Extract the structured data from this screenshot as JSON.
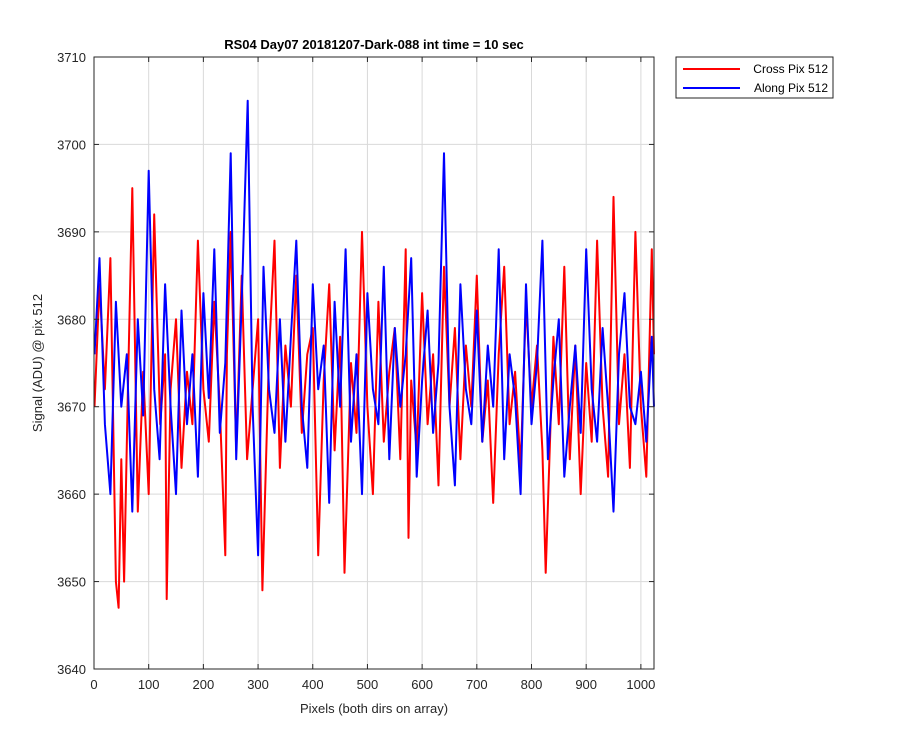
{
  "chart_data": {
    "type": "line",
    "title": "RS04 Day07 20181207-Dark-088 int time = 10 sec",
    "xlabel": "Pixels (both dirs on array)",
    "ylabel": "Signal (ADU) @ pix 512",
    "xlim": [
      0,
      1024
    ],
    "ylim": [
      3640,
      3710
    ],
    "xticks": [
      0,
      100,
      200,
      300,
      400,
      500,
      600,
      700,
      800,
      900,
      1000
    ],
    "yticks": [
      3640,
      3650,
      3660,
      3670,
      3680,
      3690,
      3700,
      3710
    ],
    "grid": true,
    "legend_position": "outside-top-right",
    "series": [
      {
        "name": "Cross Pix 512",
        "color": "#ff0000",
        "x": [
          1,
          10,
          20,
          30,
          40,
          45,
          50,
          55,
          62,
          70,
          80,
          90,
          100,
          110,
          121,
          130,
          133,
          140,
          150,
          160,
          170,
          180,
          190,
          200,
          210,
          220,
          230,
          240,
          243,
          250,
          260,
          270,
          280,
          290,
          300,
          308,
          320,
          330,
          340,
          350,
          360,
          370,
          380,
          390,
          400,
          410,
          420,
          430,
          440,
          450,
          458,
          470,
          480,
          490,
          500,
          510,
          520,
          530,
          540,
          550,
          560,
          570,
          575,
          580,
          590,
          600,
          610,
          620,
          630,
          640,
          650,
          660,
          670,
          680,
          690,
          700,
          710,
          720,
          730,
          740,
          750,
          760,
          770,
          780,
          790,
          800,
          810,
          820,
          826,
          840,
          850,
          860,
          870,
          880,
          890,
          900,
          910,
          920,
          930,
          940,
          950,
          960,
          970,
          980,
          990,
          1000,
          1010,
          1020,
          1024
        ],
        "y": [
          3670,
          3684,
          3672,
          3687,
          3650,
          3647,
          3664,
          3650,
          3672,
          3695,
          3658,
          3674,
          3660,
          3692,
          3668,
          3676,
          3648,
          3672,
          3680,
          3663,
          3674,
          3668,
          3689,
          3672,
          3666,
          3682,
          3670,
          3653,
          3676,
          3690,
          3665,
          3685,
          3664,
          3672,
          3680,
          3649,
          3676,
          3689,
          3663,
          3677,
          3670,
          3685,
          3667,
          3676,
          3679,
          3653,
          3673,
          3684,
          3665,
          3678,
          3651,
          3675,
          3667,
          3690,
          3670,
          3660,
          3682,
          3666,
          3674,
          3679,
          3664,
          3688,
          3655,
          3673,
          3665,
          3683,
          3668,
          3676,
          3661,
          3686,
          3670,
          3679,
          3664,
          3677,
          3670,
          3685,
          3666,
          3673,
          3659,
          3676,
          3686,
          3668,
          3674,
          3663,
          3682,
          3670,
          3677,
          3665,
          3651,
          3678,
          3668,
          3686,
          3664,
          3677,
          3660,
          3675,
          3666,
          3689,
          3670,
          3662,
          3694,
          3668,
          3676,
          3663,
          3690,
          3670,
          3662,
          3688,
          3676
        ]
      },
      {
        "name": "Along Pix 512",
        "color": "#0000ff",
        "x": [
          1,
          10,
          20,
          30,
          40,
          50,
          60,
          70,
          80,
          90,
          100,
          110,
          120,
          130,
          140,
          150,
          160,
          170,
          180,
          190,
          200,
          210,
          220,
          230,
          240,
          250,
          260,
          270,
          281,
          290,
          300,
          310,
          320,
          330,
          340,
          350,
          360,
          370,
          380,
          390,
          400,
          410,
          420,
          430,
          440,
          450,
          460,
          470,
          480,
          490,
          500,
          510,
          520,
          530,
          540,
          550,
          560,
          570,
          580,
          590,
          600,
          610,
          620,
          630,
          640,
          650,
          660,
          670,
          680,
          690,
          700,
          710,
          720,
          730,
          740,
          750,
          760,
          770,
          780,
          790,
          800,
          810,
          820,
          830,
          840,
          850,
          860,
          870,
          880,
          890,
          900,
          910,
          920,
          930,
          940,
          950,
          960,
          970,
          980,
          990,
          1000,
          1010,
          1020,
          1024
        ],
        "y": [
          3676,
          3687,
          3668,
          3660,
          3682,
          3670,
          3676,
          3658,
          3680,
          3669,
          3697,
          3672,
          3664,
          3684,
          3670,
          3660,
          3681,
          3668,
          3676,
          3662,
          3683,
          3671,
          3688,
          3667,
          3675,
          3699,
          3664,
          3682,
          3705,
          3670,
          3653,
          3686,
          3672,
          3667,
          3680,
          3666,
          3678,
          3689,
          3670,
          3663,
          3684,
          3672,
          3677,
          3659,
          3682,
          3670,
          3688,
          3666,
          3676,
          3660,
          3683,
          3672,
          3668,
          3686,
          3664,
          3679,
          3670,
          3676,
          3687,
          3662,
          3673,
          3681,
          3667,
          3675,
          3699,
          3670,
          3661,
          3684,
          3672,
          3668,
          3681,
          3666,
          3677,
          3670,
          3688,
          3664,
          3676,
          3671,
          3660,
          3684,
          3668,
          3675,
          3689,
          3664,
          3673,
          3680,
          3662,
          3670,
          3677,
          3667,
          3688,
          3672,
          3666,
          3679,
          3670,
          3658,
          3676,
          3683,
          3670,
          3668,
          3674,
          3666,
          3678,
          3670
        ]
      }
    ]
  }
}
